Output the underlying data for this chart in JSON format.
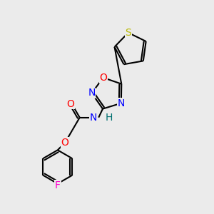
{
  "bg": "#ebebeb",
  "bond_color": "#000000",
  "lw": 1.5,
  "atom_colors": {
    "S": "#b8b800",
    "O": "#ff0000",
    "N": "#0000ff",
    "F": "#ff00cc",
    "H": "#007070"
  },
  "font_size": 10
}
